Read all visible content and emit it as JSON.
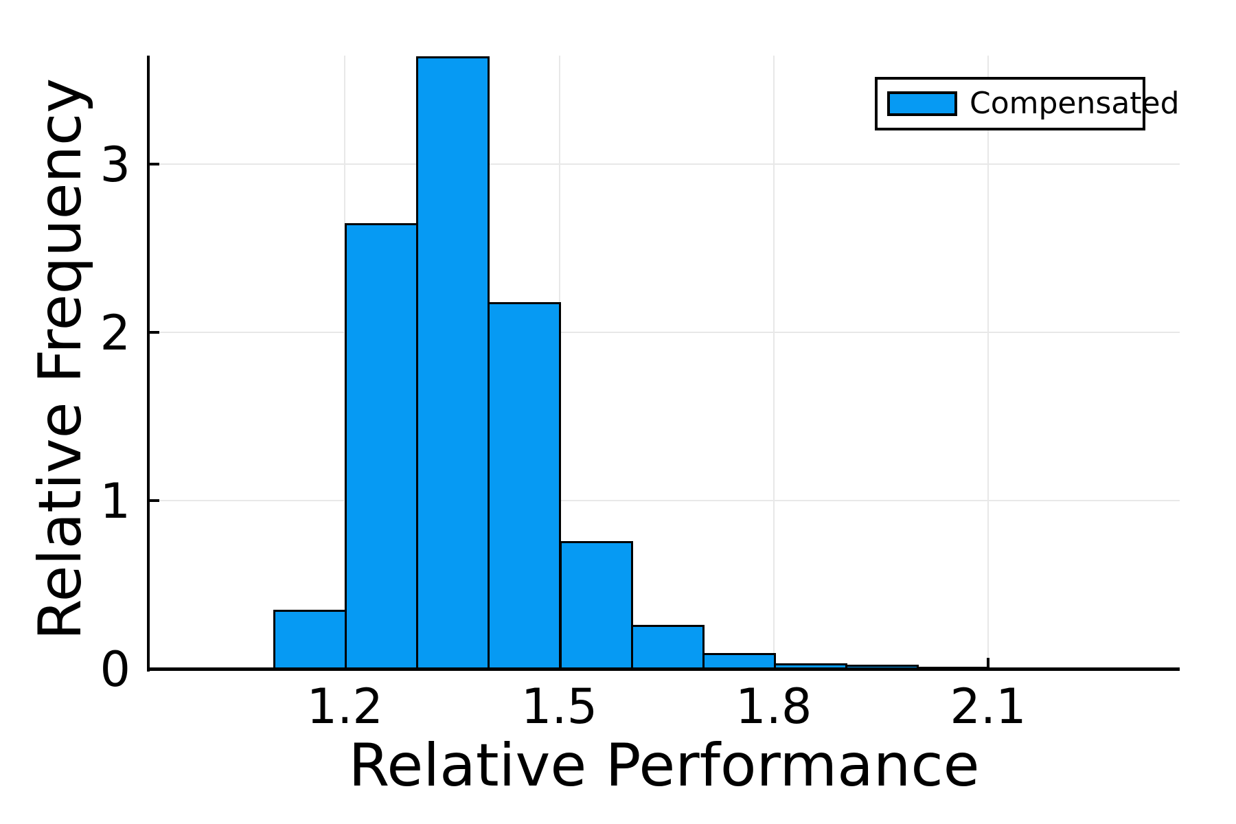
{
  "chart_data": {
    "type": "bar",
    "subtype": "histogram",
    "title": "",
    "xlabel": "Relative Performance",
    "ylabel": "Relative Frequency",
    "legend": {
      "position": "upper right",
      "entries": [
        {
          "label": "Compensated",
          "color": "#069AF3"
        }
      ]
    },
    "bin_edges": [
      1.0,
      1.1,
      1.2,
      1.3,
      1.4,
      1.5,
      1.6,
      1.7,
      1.8,
      1.9,
      2.0,
      2.1,
      2.2,
      2.3
    ],
    "values": [
      0.006,
      0.35,
      2.65,
      3.64,
      2.18,
      0.76,
      0.26,
      0.095,
      0.033,
      0.024,
      0.012,
      0.0,
      0.004
    ],
    "x_ticks": [
      1.2,
      1.5,
      1.8,
      2.1
    ],
    "x_tick_labels": [
      "1.2",
      "1.5",
      "1.8",
      "2.1"
    ],
    "y_ticks": [
      0,
      1,
      2,
      3
    ],
    "y_tick_labels": [
      "0",
      "1",
      "2",
      "3"
    ],
    "xlim": [
      0.925,
      2.368
    ],
    "ylim": [
      0,
      3.645
    ],
    "grid": true,
    "colors": {
      "bar_fill": "#069AF3",
      "bar_edge": "#000000",
      "grid": "#e8e8e8",
      "axis": "#000000",
      "background": "#ffffff",
      "text": "#000000"
    }
  }
}
